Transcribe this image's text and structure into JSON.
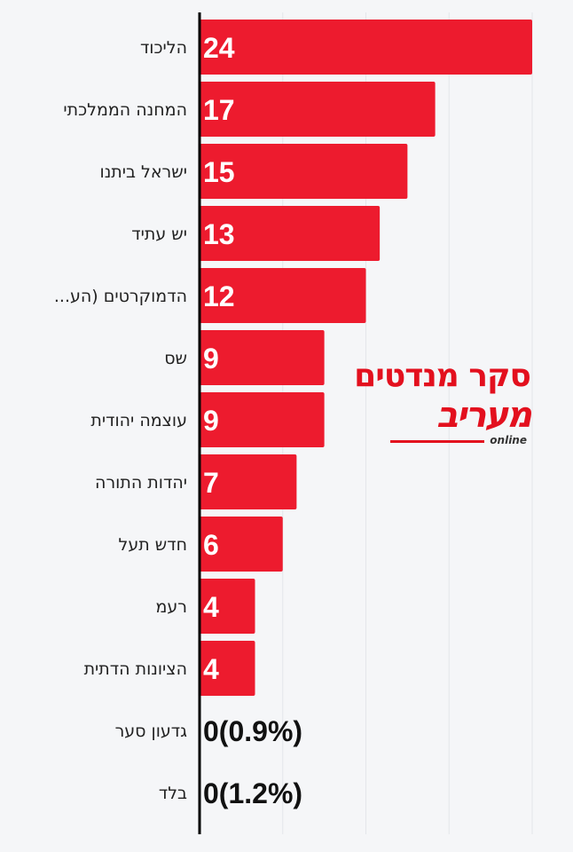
{
  "chart_data": {
    "type": "bar",
    "orientation": "horizontal",
    "categories": [
      "הליכוד",
      "המחנה הממלכתי",
      "ישראל ביתנו",
      "יש עתיד",
      "...הדמוקרטים (הע",
      "שס",
      "עוצמה יהודית",
      "יהדות התורה",
      "חדש תעל",
      "רעמ",
      "הציונות הדתית",
      "גדעון סער",
      "בלד"
    ],
    "values": [
      24,
      17,
      15,
      13,
      12,
      9,
      9,
      7,
      6,
      4,
      4,
      0,
      0
    ],
    "value_labels": [
      "24",
      "17",
      "15",
      "13",
      "12",
      "9",
      "9",
      "7",
      "6",
      "4",
      "4",
      "0(0.9%)",
      "0(1.2%)"
    ],
    "xlim": [
      0,
      24
    ],
    "bar_color": "#ed1b2e",
    "grid": true
  },
  "logo": {
    "title": "סקר מנדטים",
    "brand": "מעריב",
    "tagline": "online",
    "color": "#e3101e"
  }
}
